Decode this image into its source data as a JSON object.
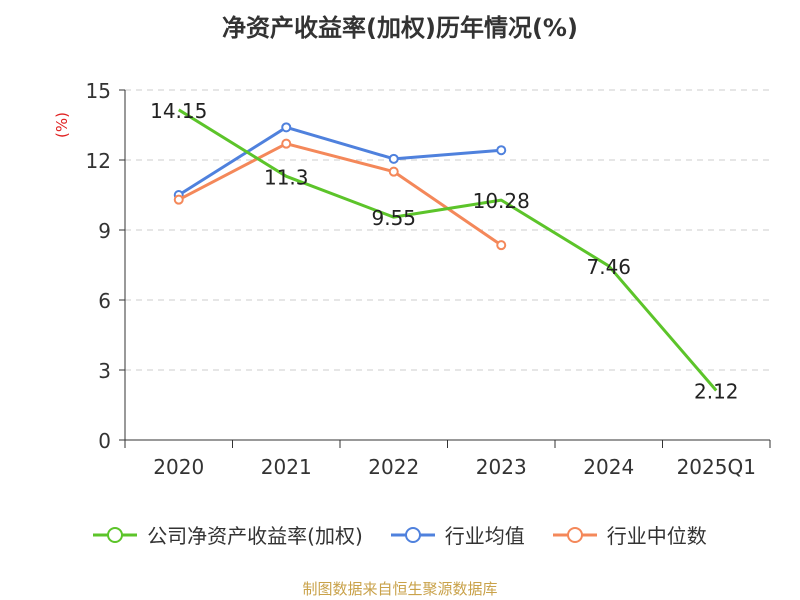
{
  "chart_data": {
    "type": "line",
    "title": "净资产收益率(加权)历年情况(%)",
    "ylabel": "(%)",
    "xlabel": "",
    "categories": [
      "2020",
      "2021",
      "2022",
      "2023",
      "2024",
      "2025Q1"
    ],
    "ylim": [
      0,
      15
    ],
    "yticks": [
      0,
      3,
      6,
      9,
      12,
      15
    ],
    "grid": true,
    "legend_position": "bottom",
    "series": [
      {
        "name": "公司净资产收益率(加权)",
        "color": "#5cc42a",
        "values": [
          14.15,
          11.3,
          9.55,
          10.28,
          7.46,
          2.12
        ],
        "value_labels": [
          "14.15",
          "11.3",
          "9.55",
          "10.28",
          "7.46",
          "2.12"
        ]
      },
      {
        "name": "行业均值",
        "color": "#4f81dd",
        "values": [
          10.5,
          13.4,
          12.05,
          12.42,
          null,
          null
        ]
      },
      {
        "name": "行业中位数",
        "color": "#f4885a",
        "values": [
          10.3,
          12.7,
          11.5,
          8.35,
          null,
          null
        ]
      }
    ]
  },
  "source": "制图数据来自恒生聚源数据库",
  "colors": {
    "text": "#333333",
    "axis": "#333333",
    "grid": "#cccccc",
    "ylabel": "#e02020"
  }
}
